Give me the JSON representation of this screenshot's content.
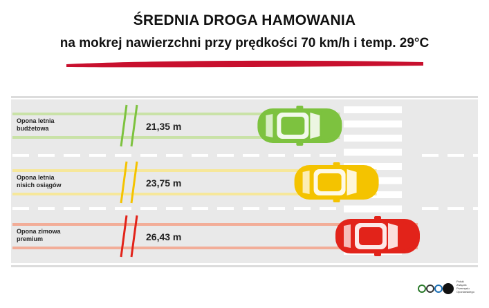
{
  "header": {
    "title": "ŚREDNIA DROGA HAMOWANIA",
    "subtitle": "na mokrej nawierzchni przy prędkości 70 km/h i temp. 29°C"
  },
  "chart_data": {
    "type": "bar",
    "orientation": "horizontal",
    "categories": [
      "Opona letnia budżetowa",
      "Opona letnia nisich osiągów",
      "Opona zimowa premium"
    ],
    "category_lines": [
      [
        "Opona letnia",
        "budżetowa"
      ],
      [
        "Opona letnia",
        "nisich osiągów"
      ],
      [
        "Opona zimowa",
        "premium"
      ]
    ],
    "values": [
      21.35,
      23.75,
      26.43
    ],
    "value_labels": [
      "21,35 m",
      "23,75 m",
      "26,43 m"
    ],
    "unit": "m",
    "colors": [
      "#7dc23f",
      "#f4c300",
      "#e2231a"
    ],
    "track_colors": [
      "#c9e2a7",
      "#f6e79a",
      "#f2ad98"
    ]
  },
  "footer": {
    "logo_lines": [
      "Polski",
      "Związek",
      "Przemysłu",
      "Oponiarskiego"
    ]
  }
}
